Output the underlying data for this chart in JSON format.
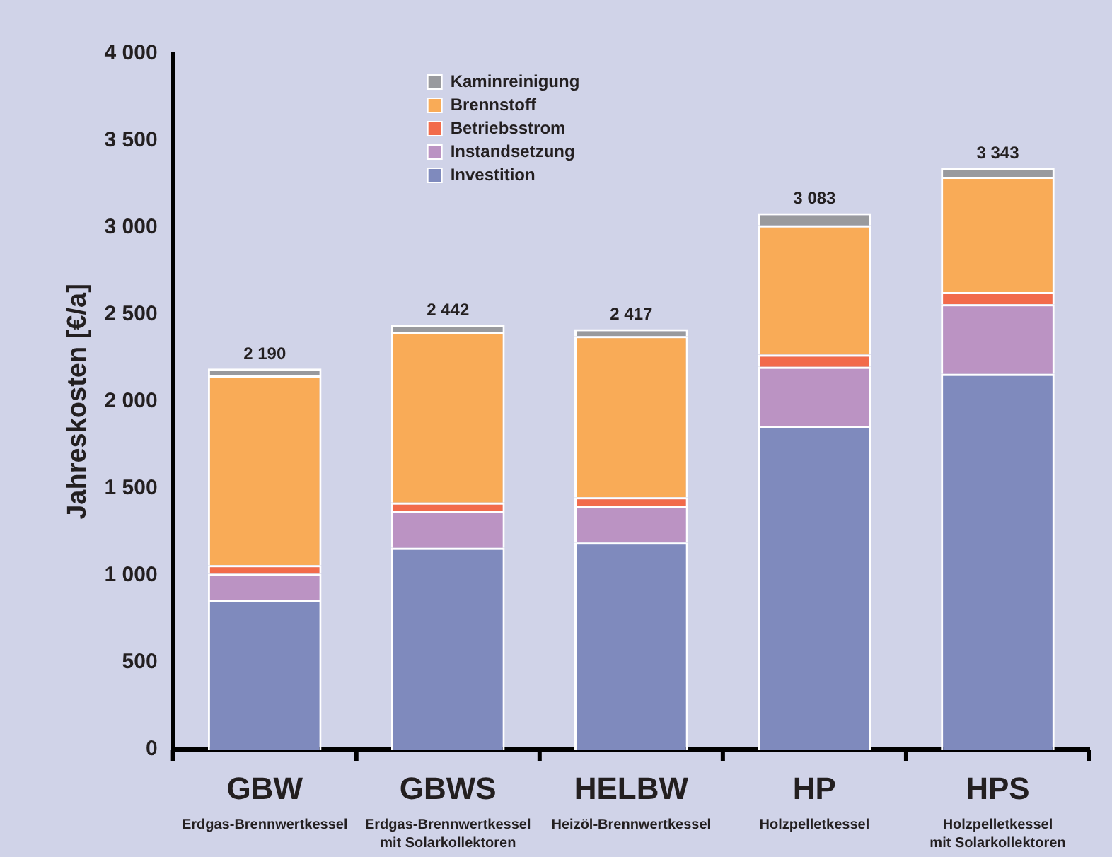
{
  "chart_data": {
    "type": "bar",
    "stacked": true,
    "ylabel": "Jahreskosten [€/a]",
    "categories": [
      "GBW\nErdgas-Brennwertkessel",
      "GBWS\nErdgas-Brennwertkessel\nmit Solarkollektoren",
      "HELBW\nHeizöl-Brennwertkessel",
      "HP\nHolzpelletkessel",
      "HPS\nHolzpelletkessel\nmit Solarkollektoren"
    ],
    "series": [
      {
        "name": "Investition",
        "color": "#7f8abd",
        "values": [
          860,
          1160,
          1190,
          1860,
          2160
        ]
      },
      {
        "name": "Instandsetzung",
        "color": "#bb93c3",
        "values": [
          150,
          210,
          210,
          340,
          400
        ]
      },
      {
        "name": "Betriebsstrom",
        "color": "#f26b4b",
        "values": [
          50,
          50,
          50,
          70,
          70
        ]
      },
      {
        "name": "Brennstoff",
        "color": "#f9ab57",
        "values": [
          1090,
          982,
          927,
          743,
          663
        ]
      },
      {
        "name": "Kaminreinigung",
        "color": "#999a9e",
        "values": [
          40,
          40,
          40,
          70,
          50
        ]
      }
    ],
    "totals": [
      "2 190",
      "2 442",
      "2 417",
      "3 083",
      "3 343"
    ],
    "ylim": [
      0,
      4000
    ],
    "yticks": [
      {
        "value": 0,
        "label": "0"
      },
      {
        "value": 500,
        "label": "500"
      },
      {
        "value": 1000,
        "label": "1 000"
      },
      {
        "value": 1500,
        "label": "1 500"
      },
      {
        "value": 2000,
        "label": "2 000"
      },
      {
        "value": 2500,
        "label": "2 500"
      },
      {
        "value": 3000,
        "label": "3 000"
      },
      {
        "value": 3500,
        "label": "3 500"
      },
      {
        "value": 4000,
        "label": "4 000"
      }
    ],
    "grid": false,
    "legend": "top left"
  }
}
